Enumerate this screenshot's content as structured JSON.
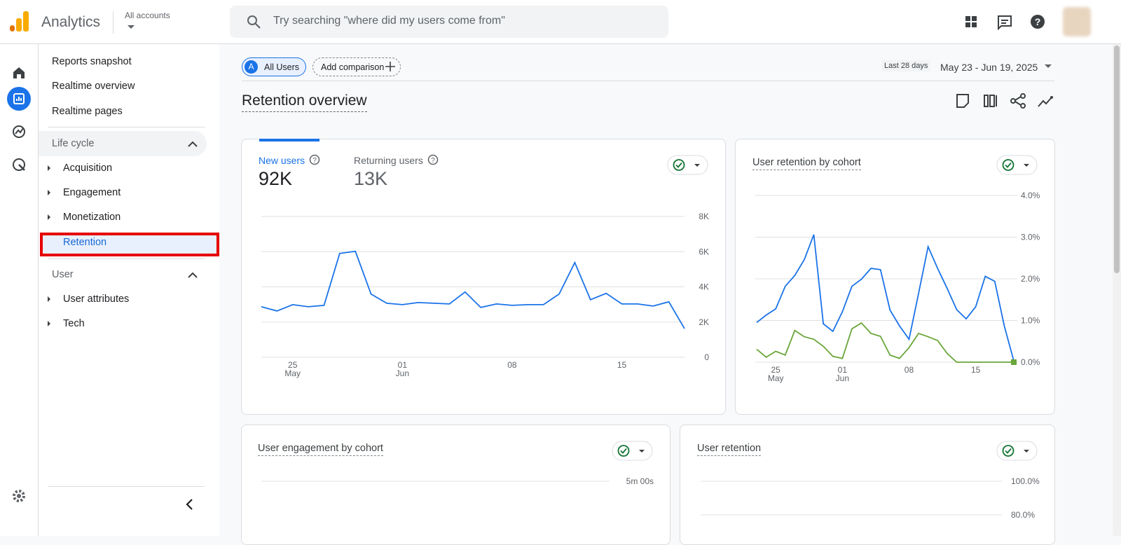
{
  "header": {
    "product": "Analytics",
    "account": "All accounts",
    "search_placeholder": "Try searching \"where did my users come from\""
  },
  "nav": {
    "top_items": [
      "Reports snapshot",
      "Realtime overview",
      "Realtime pages"
    ],
    "sections": [
      {
        "title": "Life cycle",
        "items": [
          "Acquisition",
          "Engagement",
          "Monetization",
          "Retention"
        ]
      },
      {
        "title": "User",
        "items": [
          "User attributes",
          "Tech"
        ]
      }
    ]
  },
  "toolbar": {
    "comparison_letter": "A",
    "comparison": "All Users",
    "add_comparison": "Add comparison",
    "date_range_label": "Last 28 days",
    "date_range": "May 23 - Jun 19, 2025"
  },
  "page_title": "Retention overview",
  "cards": [
    {
      "tabs": [
        {
          "label": "New users",
          "value": "92K"
        },
        {
          "label": "Returning users",
          "value": "13K"
        }
      ],
      "chart": {
        "type": "line",
        "x_day_labels": [
          null,
          null,
          "25",
          null,
          null,
          null,
          null,
          null,
          null,
          "01",
          null,
          null,
          null,
          null,
          null,
          null,
          "08",
          null,
          null,
          null,
          null,
          null,
          null,
          "15",
          null,
          null,
          null,
          null
        ],
        "x_month_labels": [
          null,
          null,
          "May",
          null,
          null,
          null,
          null,
          null,
          null,
          "Jun",
          null,
          null,
          null,
          null,
          null,
          null,
          null,
          null,
          null,
          null,
          null,
          null,
          null,
          null,
          null,
          null,
          null,
          null
        ],
        "series": [
          {
            "color": "#1a73e8",
            "values": [
              2870,
              2630,
              2990,
              2870,
              2950,
              5900,
              6020,
              3590,
              3070,
              2990,
              3110,
              3070,
              3030,
              3710,
              2830,
              3030,
              2950,
              2990,
              2990,
              3590,
              5380,
              3270,
              3630,
              3030,
              3030,
              2910,
              3150,
              1630
            ]
          }
        ],
        "ylim": [
          0,
          8000
        ],
        "yticks": [
          0,
          {
            "value": 2000,
            "label": "2K"
          },
          {
            "value": 4000,
            "label": "4K"
          },
          {
            "value": 6000,
            "label": "6K"
          },
          {
            "value": 8000,
            "label": "8K"
          }
        ],
        "grid": true
      }
    },
    {
      "title": "User retention by cohort",
      "chart": {
        "type": "line",
        "x_day_labels": [
          null,
          null,
          "25",
          null,
          null,
          null,
          null,
          null,
          null,
          "01",
          null,
          null,
          null,
          null,
          null,
          null,
          "08",
          null,
          null,
          null,
          null,
          null,
          null,
          "15",
          null,
          null,
          null,
          null
        ],
        "x_month_labels": [
          null,
          null,
          "May",
          null,
          null,
          null,
          null,
          null,
          null,
          "Jun",
          null,
          null,
          null,
          null,
          null,
          null,
          null,
          null,
          null,
          null,
          null,
          null,
          null,
          null,
          null,
          null,
          null,
          null
        ],
        "series": [
          {
            "color": "#1a73e8",
            "values": [
              0.95,
              1.13,
              1.28,
              1.82,
              2.08,
              2.46,
              3.06,
              0.92,
              0.74,
              1.21,
              1.82,
              1.99,
              2.25,
              2.22,
              1.25,
              0.87,
              0.55,
              1.65,
              2.77,
              2.25,
              1.77,
              1.26,
              1.04,
              1.33,
              2.06,
              1.94,
              0.87,
              0.03
            ]
          },
          {
            "color": "#6aa63a",
            "values": [
              0.31,
              0.12,
              0.26,
              0.17,
              0.76,
              0.61,
              0.55,
              0.38,
              0.14,
              0.09,
              0.8,
              0.94,
              0.69,
              0.62,
              0.17,
              0.09,
              0.35,
              0.69,
              0.61,
              0.52,
              0.21,
              0,
              0,
              0,
              0,
              0,
              0,
              0
            ],
            "last_point_marker": true
          }
        ],
        "ylim": [
          0,
          4
        ],
        "yticks": [
          {
            "value": 0,
            "label": "0.0%"
          },
          {
            "value": 1,
            "label": "1.0%"
          },
          {
            "value": 2,
            "label": "2.0%"
          },
          {
            "value": 3,
            "label": "3.0%"
          },
          {
            "value": 4,
            "label": "4.0%"
          }
        ],
        "grid": true
      }
    },
    {
      "title": "User engagement by cohort",
      "chart": {
        "type": "line",
        "series": [],
        "ylim": [
          0,
          300
        ],
        "yticks": [
          {
            "value": 300,
            "label": "5m 00s"
          }
        ],
        "grid": true
      }
    },
    {
      "title": "User retention",
      "chart": {
        "type": "line",
        "series": [],
        "ylim": [
          0,
          100
        ],
        "yticks": [
          {
            "value": 100,
            "label": "100.0%"
          },
          {
            "value": 80,
            "label": "80.0%"
          }
        ],
        "grid": true
      }
    }
  ]
}
